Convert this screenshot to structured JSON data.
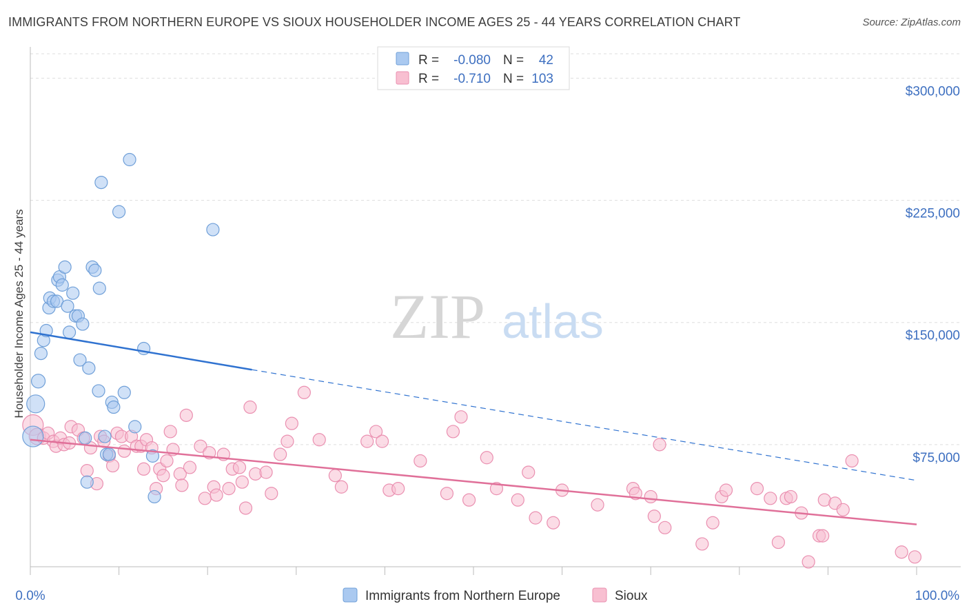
{
  "title": "IMMIGRANTS FROM NORTHERN EUROPE VS SIOUX HOUSEHOLDER INCOME AGES 25 - 44 YEARS CORRELATION CHART",
  "source": "Source: ZipAtlas.com",
  "watermark": {
    "zip": "ZIP",
    "atlas": "atlas"
  },
  "colors": {
    "blue_fill": "#aac9f0",
    "blue_stroke": "#6f9fd8",
    "blue_line": "#2f72d0",
    "pink_fill": "#f8bfd1",
    "pink_stroke": "#ea8fb0",
    "pink_line": "#e07099",
    "axis_label": "#3d6fc0",
    "grid": "#dddddd"
  },
  "legend_top": [
    {
      "r_label": "R =",
      "r_value": "-0.080",
      "n_label": "N =",
      "n_value": "42"
    },
    {
      "r_label": "R =",
      "r_value": "-0.710",
      "n_label": "N =",
      "n_value": "103"
    }
  ],
  "chart_data": {
    "type": "scatter",
    "title": "IMMIGRANTS FROM NORTHERN EUROPE VS SIOUX HOUSEHOLDER INCOME AGES 25 - 44 YEARS CORRELATION CHART",
    "xlabel": "",
    "ylabel": "Householder Income Ages 25 - 44 years",
    "xlim": [
      0,
      100
    ],
    "ylim": [
      0,
      315000
    ],
    "x_tick_labels": [
      "0.0%",
      "100.0%"
    ],
    "y_ticks": [
      75000,
      150000,
      225000,
      300000
    ],
    "y_tick_labels": [
      "$75,000",
      "$150,000",
      "$225,000",
      "$300,000"
    ],
    "grid": true,
    "legend": [
      "Immigrants from Northern Europe",
      "Sioux"
    ],
    "series": [
      {
        "name": "Immigrants from Northern Europe",
        "color": "#aac9f0",
        "trend": {
          "x0": 0,
          "y0": 144000,
          "x1": 25,
          "y1": 121000,
          "dash_to_x": 100,
          "dash_to_y": 53000
        },
        "points": [
          [
            0.3,
            80000,
            16
          ],
          [
            0.6,
            100000,
            14
          ],
          [
            0.9,
            114000,
            11
          ],
          [
            1.2,
            131000,
            10
          ],
          [
            1.5,
            139000,
            10
          ],
          [
            1.8,
            145000,
            10
          ],
          [
            2.1,
            159000,
            10
          ],
          [
            2.2,
            165000,
            10
          ],
          [
            2.6,
            163000,
            10
          ],
          [
            3.0,
            163000,
            10
          ],
          [
            3.1,
            176000,
            10
          ],
          [
            3.3,
            178000,
            10
          ],
          [
            3.6,
            173000,
            10
          ],
          [
            3.9,
            184000,
            10
          ],
          [
            4.2,
            160000,
            10
          ],
          [
            4.4,
            144000,
            10
          ],
          [
            4.8,
            168000,
            10
          ],
          [
            5.1,
            154000,
            10
          ],
          [
            5.4,
            154000,
            10
          ],
          [
            5.6,
            127000,
            10
          ],
          [
            5.9,
            149000,
            10
          ],
          [
            6.2,
            79000,
            10
          ],
          [
            6.4,
            52000,
            10
          ],
          [
            6.6,
            122000,
            10
          ],
          [
            7.0,
            184000,
            10
          ],
          [
            7.3,
            182000,
            10
          ],
          [
            7.7,
            108000,
            10
          ],
          [
            7.8,
            171000,
            10
          ],
          [
            8.0,
            236000,
            10
          ],
          [
            8.4,
            80000,
            10
          ],
          [
            8.6,
            69000,
            10
          ],
          [
            8.9,
            69000,
            10
          ],
          [
            9.2,
            101000,
            10
          ],
          [
            9.4,
            98000,
            10
          ],
          [
            10.0,
            218000,
            10
          ],
          [
            10.6,
            107000,
            10
          ],
          [
            11.2,
            250000,
            10
          ],
          [
            11.8,
            86000,
            10
          ],
          [
            12.8,
            134000,
            10
          ],
          [
            13.8,
            68000,
            10
          ],
          [
            14.0,
            43000,
            10
          ],
          [
            20.6,
            207000,
            10
          ]
        ]
      },
      {
        "name": "Sioux",
        "color": "#f8bfd1",
        "trend": {
          "x0": 0,
          "y0": 78000,
          "x1": 100,
          "y1": 26000
        },
        "points": [
          [
            0.3,
            87000,
            16
          ],
          [
            0.8,
            80000,
            13
          ],
          [
            1.5,
            79000,
            10
          ],
          [
            2.0,
            82000,
            10
          ],
          [
            2.6,
            77000,
            10
          ],
          [
            2.9,
            74000,
            10
          ],
          [
            3.4,
            79000,
            10
          ],
          [
            3.8,
            75000,
            10
          ],
          [
            4.4,
            76000,
            10
          ],
          [
            4.6,
            86000,
            10
          ],
          [
            5.4,
            84000,
            10
          ],
          [
            6.0,
            79000,
            10
          ],
          [
            6.4,
            59000,
            10
          ],
          [
            6.8,
            73000,
            10
          ],
          [
            7.5,
            51000,
            10
          ],
          [
            7.9,
            80000,
            10
          ],
          [
            8.3,
            77000,
            10
          ],
          [
            8.9,
            68000,
            10
          ],
          [
            9.3,
            62000,
            10
          ],
          [
            9.8,
            82000,
            10
          ],
          [
            10.3,
            80000,
            10
          ],
          [
            10.6,
            71000,
            10
          ],
          [
            11.4,
            80000,
            10
          ],
          [
            12.0,
            74000,
            10
          ],
          [
            12.5,
            74000,
            10
          ],
          [
            12.8,
            60000,
            10
          ],
          [
            13.1,
            78000,
            10
          ],
          [
            13.7,
            73000,
            10
          ],
          [
            14.2,
            48000,
            10
          ],
          [
            14.6,
            60000,
            10
          ],
          [
            15.0,
            56000,
            10
          ],
          [
            15.4,
            65000,
            10
          ],
          [
            15.8,
            83000,
            10
          ],
          [
            16.1,
            72000,
            10
          ],
          [
            16.9,
            57000,
            10
          ],
          [
            17.1,
            50000,
            10
          ],
          [
            17.6,
            93000,
            10
          ],
          [
            18.0,
            61000,
            10
          ],
          [
            19.2,
            74000,
            10
          ],
          [
            19.7,
            42000,
            10
          ],
          [
            20.2,
            70000,
            10
          ],
          [
            20.7,
            49000,
            10
          ],
          [
            21.0,
            44000,
            10
          ],
          [
            21.8,
            69000,
            10
          ],
          [
            22.4,
            48000,
            10
          ],
          [
            22.8,
            60000,
            10
          ],
          [
            23.6,
            61000,
            10
          ],
          [
            23.9,
            52000,
            10
          ],
          [
            24.3,
            36000,
            10
          ],
          [
            24.8,
            98000,
            10
          ],
          [
            25.4,
            57000,
            10
          ],
          [
            26.6,
            58000,
            10
          ],
          [
            27.2,
            45000,
            10
          ],
          [
            28.2,
            69000,
            10
          ],
          [
            29.0,
            77000,
            10
          ],
          [
            29.5,
            88000,
            10
          ],
          [
            30.9,
            107000,
            10
          ],
          [
            32.6,
            78000,
            10
          ],
          [
            34.4,
            56000,
            10
          ],
          [
            35.1,
            49000,
            10
          ],
          [
            38.0,
            77000,
            10
          ],
          [
            39.0,
            83000,
            10
          ],
          [
            39.7,
            77000,
            10
          ],
          [
            40.5,
            47000,
            10
          ],
          [
            41.5,
            48000,
            10
          ],
          [
            44.0,
            65000,
            10
          ],
          [
            47.0,
            45000,
            10
          ],
          [
            47.7,
            83000,
            10
          ],
          [
            48.6,
            92000,
            10
          ],
          [
            49.5,
            41000,
            10
          ],
          [
            51.5,
            67000,
            10
          ],
          [
            52.6,
            48000,
            10
          ],
          [
            55.0,
            41000,
            10
          ],
          [
            56.2,
            58000,
            10
          ],
          [
            57.0,
            30000,
            10
          ],
          [
            59.0,
            27000,
            10
          ],
          [
            60.0,
            47000,
            10
          ],
          [
            64.0,
            38000,
            10
          ],
          [
            68.0,
            48000,
            10
          ],
          [
            68.3,
            45000,
            10
          ],
          [
            70.0,
            43000,
            10
          ],
          [
            70.4,
            31000,
            10
          ],
          [
            71.0,
            75000,
            10
          ],
          [
            71.6,
            24000,
            10
          ],
          [
            75.8,
            14000,
            10
          ],
          [
            77.0,
            27000,
            10
          ],
          [
            78.0,
            43000,
            10
          ],
          [
            78.5,
            47000,
            10
          ],
          [
            82.0,
            48000,
            10
          ],
          [
            83.5,
            42000,
            10
          ],
          [
            84.4,
            15000,
            10
          ],
          [
            85.3,
            42000,
            10
          ],
          [
            85.8,
            43000,
            10
          ],
          [
            87.0,
            33000,
            10
          ],
          [
            87.8,
            3000,
            10
          ],
          [
            89.0,
            19000,
            10
          ],
          [
            89.6,
            41000,
            10
          ],
          [
            90.8,
            39000,
            10
          ],
          [
            91.7,
            35000,
            10
          ],
          [
            92.7,
            65000,
            10
          ],
          [
            98.3,
            9000,
            10
          ],
          [
            99.8,
            6000,
            10
          ],
          [
            89.4,
            19000,
            10
          ]
        ]
      }
    ]
  }
}
